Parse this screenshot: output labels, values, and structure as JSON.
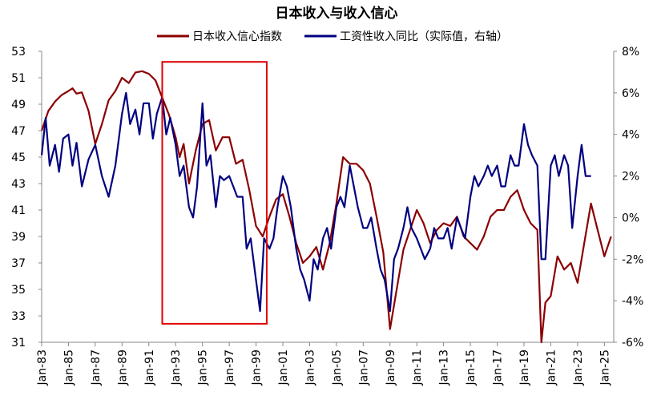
{
  "chart_data": {
    "type": "line",
    "title": "日本收入与收入信心",
    "x_ticks": [
      "Jan-83",
      "Jan-85",
      "Jan-87",
      "Jan-89",
      "Jan-91",
      "Jan-93",
      "Jan-95",
      "Jan-97",
      "Jan-99",
      "Jan-01",
      "Jan-03",
      "Jan-05",
      "Jan-07",
      "Jan-09",
      "Jan-11",
      "Jan-13",
      "Jan-15",
      "Jan-17",
      "Jan-19",
      "Jan-21",
      "Jan-23",
      "Jan-25"
    ],
    "x_range": [
      1983.0,
      2025.7
    ],
    "y_left": {
      "min": 31,
      "max": 53,
      "ticks": [
        31,
        33,
        35,
        37,
        39,
        41,
        43,
        45,
        47,
        49,
        51,
        53
      ]
    },
    "y_right": {
      "min": -6,
      "max": 8,
      "ticks": [
        "-6%",
        "-4%",
        "-2%",
        "0%",
        "2%",
        "4%",
        "6%",
        "8%"
      ]
    },
    "series": [
      {
        "name": "日本收入信心指数",
        "axis": "left",
        "color": "#8B0000",
        "x": [
          1983.0,
          1983.5,
          1984.0,
          1984.5,
          1985.0,
          1985.3,
          1985.6,
          1986.0,
          1986.5,
          1987.0,
          1987.5,
          1988.0,
          1988.5,
          1989.0,
          1989.5,
          1990.0,
          1990.5,
          1991.0,
          1991.5,
          1992.0,
          1992.5,
          1993.0,
          1993.3,
          1993.6,
          1994.0,
          1994.5,
          1995.0,
          1995.5,
          1996.0,
          1996.5,
          1997.0,
          1997.5,
          1998.0,
          1998.5,
          1999.0,
          1999.5,
          2000.0,
          2000.5,
          2001.0,
          2001.5,
          2002.0,
          2002.5,
          2003.0,
          2003.5,
          2004.0,
          2004.5,
          2005.0,
          2005.5,
          2006.0,
          2006.5,
          2007.0,
          2007.5,
          2008.0,
          2008.5,
          2009.0,
          2009.5,
          2010.0,
          2010.5,
          2011.0,
          2011.5,
          2012.0,
          2012.5,
          2013.0,
          2013.5,
          2014.0,
          2014.5,
          2015.0,
          2015.5,
          2016.0,
          2016.5,
          2017.0,
          2017.5,
          2018.0,
          2018.5,
          2019.0,
          2019.5,
          2020.0,
          2020.3,
          2020.6,
          2021.0,
          2021.5,
          2022.0,
          2022.5,
          2023.0,
          2023.5,
          2024.0,
          2024.5,
          2025.0,
          2025.5
        ],
        "values": [
          47.0,
          48.5,
          49.2,
          49.7,
          50.0,
          50.2,
          49.8,
          49.9,
          48.5,
          46.0,
          47.5,
          49.3,
          50.0,
          51.0,
          50.6,
          51.4,
          51.5,
          51.3,
          50.8,
          49.5,
          48.2,
          46.5,
          45.0,
          46.0,
          43.0,
          45.5,
          47.5,
          47.8,
          45.5,
          46.5,
          46.5,
          44.5,
          44.8,
          42.5,
          39.8,
          39.0,
          40.5,
          41.8,
          42.2,
          40.5,
          38.5,
          37.0,
          37.5,
          38.2,
          36.5,
          38.5,
          41.5,
          45.0,
          44.5,
          44.5,
          44.0,
          43.0,
          40.5,
          37.8,
          32.0,
          35.0,
          38.0,
          39.5,
          41.0,
          40.0,
          38.5,
          39.5,
          40.0,
          39.8,
          40.5,
          39.0,
          38.5,
          38.0,
          39.0,
          40.5,
          41.0,
          41.0,
          42.0,
          42.5,
          41.0,
          40.0,
          39.5,
          31.0,
          34.0,
          34.5,
          37.5,
          36.5,
          37.0,
          35.5,
          38.5,
          41.5,
          39.5,
          37.5,
          39.0
        ]
      },
      {
        "name": "工资性收入同比（实际值，右轴）",
        "axis": "right",
        "color": "#000080",
        "x": [
          1983.0,
          1983.3,
          1983.6,
          1984.0,
          1984.3,
          1984.6,
          1985.0,
          1985.3,
          1985.6,
          1986.0,
          1986.5,
          1987.0,
          1987.5,
          1988.0,
          1988.5,
          1989.0,
          1989.3,
          1989.6,
          1990.0,
          1990.3,
          1990.6,
          1991.0,
          1991.3,
          1991.6,
          1992.0,
          1992.3,
          1992.6,
          1993.0,
          1993.3,
          1993.6,
          1994.0,
          1994.3,
          1994.6,
          1995.0,
          1995.3,
          1995.6,
          1996.0,
          1996.3,
          1996.6,
          1997.0,
          1997.3,
          1997.6,
          1998.0,
          1998.3,
          1998.6,
          1999.0,
          1999.3,
          1999.6,
          2000.0,
          2000.3,
          2000.6,
          2001.0,
          2001.3,
          2001.6,
          2002.0,
          2002.3,
          2002.6,
          2003.0,
          2003.3,
          2003.6,
          2004.0,
          2004.3,
          2004.6,
          2005.0,
          2005.3,
          2005.6,
          2006.0,
          2006.3,
          2006.6,
          2007.0,
          2007.3,
          2007.6,
          2008.0,
          2008.3,
          2008.6,
          2009.0,
          2009.3,
          2009.6,
          2010.0,
          2010.3,
          2010.6,
          2011.0,
          2011.3,
          2011.6,
          2012.0,
          2012.3,
          2012.6,
          2013.0,
          2013.3,
          2013.6,
          2014.0,
          2014.3,
          2014.6,
          2015.0,
          2015.3,
          2015.6,
          2016.0,
          2016.3,
          2016.6,
          2017.0,
          2017.3,
          2017.6,
          2018.0,
          2018.3,
          2018.6,
          2019.0,
          2019.3,
          2019.6,
          2020.0,
          2020.3,
          2020.6,
          2021.0,
          2021.3,
          2021.6,
          2022.0,
          2022.3,
          2022.6,
          2023.0,
          2023.3,
          2023.6,
          2024.0
        ],
        "values": [
          3.0,
          4.8,
          2.5,
          3.5,
          2.2,
          3.8,
          4.0,
          2.5,
          3.6,
          1.5,
          2.8,
          3.5,
          2.0,
          1.0,
          2.5,
          5.0,
          6.0,
          4.5,
          5.2,
          4.0,
          5.5,
          5.5,
          3.8,
          5.0,
          5.8,
          4.0,
          4.8,
          3.5,
          2.0,
          2.5,
          0.5,
          0.0,
          1.5,
          5.5,
          2.5,
          3.0,
          0.5,
          2.0,
          1.8,
          2.0,
          1.5,
          1.0,
          1.0,
          -1.5,
          -1.0,
          -3.0,
          -4.5,
          -1.0,
          -1.5,
          -1.0,
          0.5,
          2.0,
          1.5,
          0.5,
          -1.5,
          -2.5,
          -3.0,
          -4.0,
          -2.0,
          -2.5,
          -1.0,
          -0.5,
          -1.5,
          0.5,
          1.0,
          0.5,
          2.5,
          1.5,
          0.5,
          -0.5,
          -0.5,
          0.0,
          -1.5,
          -2.5,
          -3.0,
          -4.5,
          -2.0,
          -1.5,
          -0.5,
          0.5,
          -0.5,
          -1.0,
          -1.5,
          -2.0,
          -1.5,
          -0.5,
          -1.0,
          -1.0,
          -0.5,
          -1.5,
          0.0,
          -0.5,
          -1.0,
          1.0,
          2.0,
          1.5,
          2.0,
          2.5,
          2.0,
          2.5,
          1.5,
          1.5,
          3.0,
          2.5,
          2.5,
          4.5,
          3.5,
          3.0,
          2.5,
          -2.0,
          -2.0,
          2.5,
          3.0,
          2.0,
          3.0,
          2.5,
          -0.5,
          2.0,
          3.5,
          2.0,
          2.0
        ]
      }
    ],
    "annotation": "red rectangle highlighting 1992–1999"
  }
}
